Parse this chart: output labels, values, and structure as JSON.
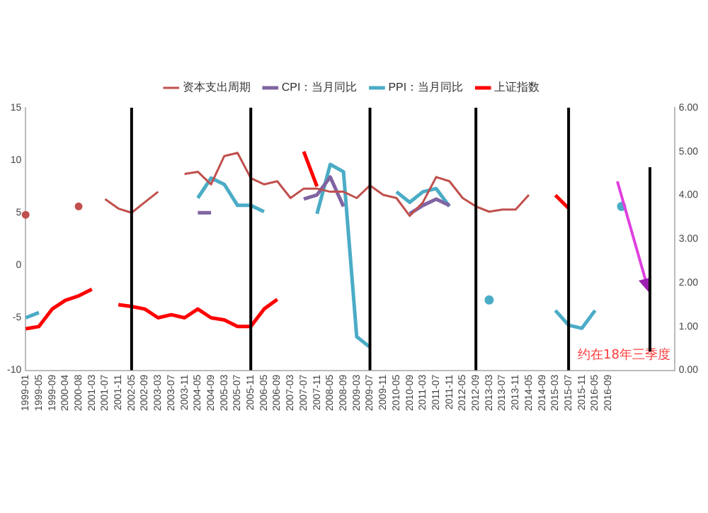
{
  "chart_data": {
    "type": "line",
    "categories": [
      "1999-01",
      "1999-05",
      "1999-09",
      "2000-04",
      "2000-08",
      "2001-03",
      "2001-07",
      "2001-11",
      "2002-05",
      "2002-09",
      "2003-03",
      "2003-07",
      "2003-11",
      "2004-05",
      "2004-09",
      "2005-03",
      "2005-07",
      "2005-11",
      "2006-05",
      "2006-09",
      "2007-03",
      "2007-07",
      "2007-11",
      "2008-05",
      "2008-09",
      "2009-03",
      "2009-07",
      "2009-11",
      "2010-05",
      "2010-09",
      "2011-03",
      "2011-07",
      "2011-11",
      "2012-05",
      "2012-09",
      "2013-03",
      "2013-07",
      "2013-11",
      "2014-05",
      "2014-09",
      "2015-03",
      "2015-07",
      "2015-11",
      "2016-05",
      "2016-09",
      null,
      null,
      null,
      null,
      null
    ],
    "series": [
      {
        "name": "资本支出周期",
        "color": "#c0504d",
        "values": [
          4.8,
          null,
          null,
          null,
          5.6,
          null,
          6.3,
          5.4,
          5.0,
          6.0,
          7.0,
          null,
          8.7,
          8.9,
          7.7,
          10.4,
          10.7,
          8.3,
          7.7,
          8.0,
          6.4,
          7.3,
          7.3,
          7.0,
          7.0,
          6.4,
          7.6,
          6.7,
          6.4,
          4.7,
          6.0,
          8.4,
          8.0,
          6.4,
          5.6,
          5.1,
          5.3,
          5.3,
          6.7,
          null,
          null,
          null,
          null,
          null,
          null,
          null,
          null,
          null,
          null,
          null
        ]
      },
      {
        "name": "CPI：当月同比",
        "color": "#8064a2",
        "values": [
          null,
          null,
          null,
          null,
          null,
          null,
          null,
          null,
          null,
          null,
          null,
          null,
          null,
          5.0,
          5.0,
          null,
          null,
          null,
          null,
          null,
          null,
          6.3,
          6.7,
          8.4,
          5.6,
          null,
          null,
          null,
          null,
          4.9,
          5.7,
          6.3,
          5.7,
          null,
          null,
          null,
          null,
          null,
          null,
          null,
          null,
          null,
          null,
          null,
          null,
          null,
          null,
          null,
          null,
          null
        ]
      },
      {
        "name": "PPI：当月同比",
        "color": "#4bacc6",
        "values": [
          -5,
          -4.5,
          null,
          null,
          null,
          null,
          null,
          null,
          null,
          null,
          null,
          null,
          null,
          6.4,
          8.3,
          7.7,
          5.7,
          5.7,
          5.1,
          null,
          null,
          null,
          4.9,
          9.6,
          8.9,
          -6.8,
          -7.8,
          null,
          7.0,
          6.0,
          7.0,
          7.3,
          5.6,
          null,
          null,
          -3.3,
          null,
          null,
          null,
          null,
          -4.3,
          -5.7,
          -6.0,
          -4.3,
          null,
          5.6,
          null,
          null,
          null,
          null
        ]
      },
      {
        "name": "上证指数",
        "color": "#ff0000",
        "axis": "y2",
        "values": [
          0.95,
          1.0,
          1.4,
          1.6,
          1.7,
          1.85,
          null,
          1.5,
          1.46,
          1.4,
          1.2,
          1.27,
          1.2,
          1.4,
          1.2,
          1.15,
          1.0,
          1.0,
          1.4,
          1.62,
          null,
          5.0,
          4.2,
          null,
          null,
          null,
          null,
          null,
          null,
          null,
          null,
          null,
          null,
          null,
          null,
          null,
          null,
          null,
          null,
          null,
          4.0,
          3.7,
          null,
          null,
          null,
          null,
          null,
          null,
          null,
          null
        ]
      }
    ],
    "ylim": [
      -10,
      15
    ],
    "yticks": [
      -10,
      -5,
      0,
      5,
      10,
      15
    ],
    "y2lim": [
      0,
      6
    ],
    "y2ticks": [
      {
        "value": 0,
        "label": "0.00"
      },
      {
        "value": 1,
        "label": "1.00"
      },
      {
        "value": 2,
        "label": "2.00"
      },
      {
        "value": 3,
        "label": "3.00"
      },
      {
        "value": 4,
        "label": "4.00"
      },
      {
        "value": 5,
        "label": "5.00"
      },
      {
        "value": 6,
        "label": "6.00"
      }
    ],
    "ref_lines": [
      {
        "axis": "x",
        "value": "2002-05",
        "color": "#000000"
      },
      {
        "axis": "x",
        "value": "2005-11",
        "color": "#000000"
      },
      {
        "axis": "x",
        "value": "2009-07",
        "color": "#000000"
      },
      {
        "axis": "x",
        "value": "2012-09",
        "color": "#000000"
      },
      {
        "axis": "x",
        "value": "2015-07",
        "color": "#000000"
      }
    ],
    "annotations": [
      "约在18年三季度"
    ],
    "legend": "top",
    "grid": false,
    "marker": "none",
    "line_style": "solid"
  }
}
